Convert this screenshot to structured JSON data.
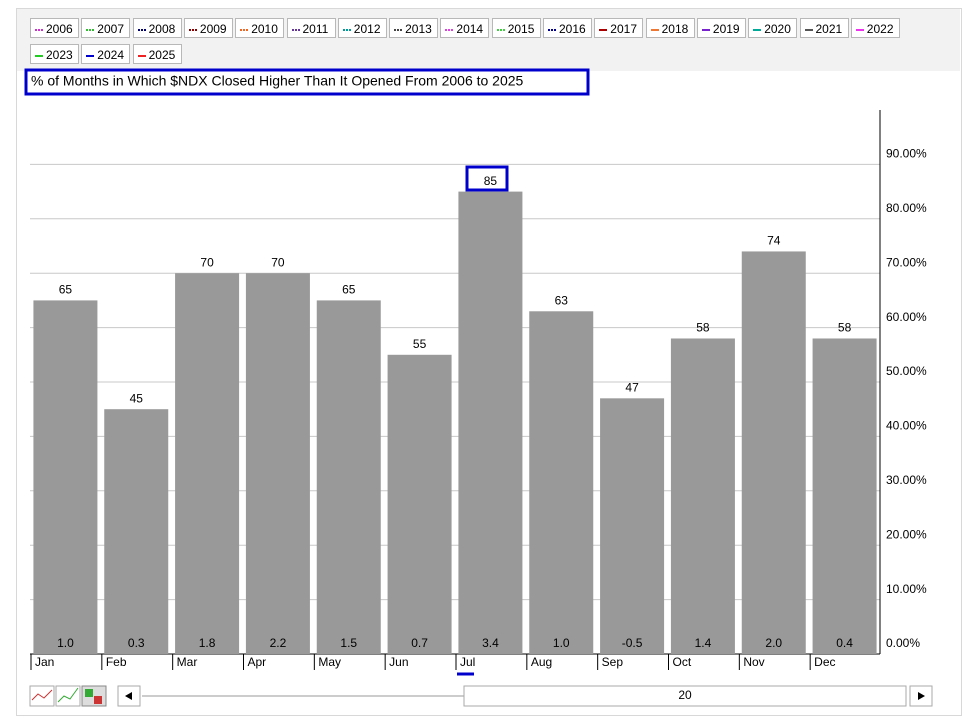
{
  "legend": [
    {
      "label": "2006",
      "color": "#cc33cc",
      "dotted": true
    },
    {
      "label": "2007",
      "color": "#33bb33",
      "dotted": true
    },
    {
      "label": "2008",
      "color": "#000066",
      "dotted": true
    },
    {
      "label": "2009",
      "color": "#880000",
      "dotted": true
    },
    {
      "label": "2010",
      "color": "#ee6622",
      "dotted": true
    },
    {
      "label": "2011",
      "color": "#663399",
      "dotted": true
    },
    {
      "label": "2012",
      "color": "#009999",
      "dotted": true
    },
    {
      "label": "2013",
      "color": "#444444",
      "dotted": true
    },
    {
      "label": "2014",
      "color": "#dd44dd",
      "dotted": true
    },
    {
      "label": "2015",
      "color": "#44cc44",
      "dotted": true
    },
    {
      "label": "2016",
      "color": "#000088",
      "dotted": true
    },
    {
      "label": "2017",
      "color": "#aa0000",
      "dotted": false
    },
    {
      "label": "2018",
      "color": "#ee7733",
      "dotted": false
    },
    {
      "label": "2019",
      "color": "#7722cc",
      "dotted": false
    },
    {
      "label": "2020",
      "color": "#00aa99",
      "dotted": false
    },
    {
      "label": "2021",
      "color": "#555555",
      "dotted": false
    },
    {
      "label": "2022",
      "color": "#ee33ee",
      "dotted": false
    },
    {
      "label": "2023",
      "color": "#22cc22",
      "dotted": false
    },
    {
      "label": "2024",
      "color": "#0000cc",
      "dotted": false
    },
    {
      "label": "2025",
      "color": "#ee2222",
      "dotted": false
    }
  ],
  "chart_data": {
    "type": "bar",
    "title": "% of Months in Which $NDX Closed Higher Than It Opened From 2006 to 2025",
    "categories": [
      "Jan",
      "Feb",
      "Mar",
      "Apr",
      "May",
      "Jun",
      "Jul",
      "Aug",
      "Sep",
      "Oct",
      "Nov",
      "Dec"
    ],
    "values": [
      65,
      45,
      70,
      70,
      65,
      55,
      85,
      63,
      47,
      58,
      74,
      58
    ],
    "bottom_labels": [
      "1.0",
      "0.3",
      "1.8",
      "2.2",
      "1.5",
      "0.7",
      "3.4",
      "1.0",
      "-0.5",
      "1.4",
      "2.0",
      "0.4"
    ],
    "color": "#999999",
    "ylim": [
      0,
      100
    ],
    "yticks": [
      {
        "value": 0,
        "label": "0.00%"
      },
      {
        "value": 10,
        "label": "10.00%"
      },
      {
        "value": 20,
        "label": "20.00%"
      },
      {
        "value": 30,
        "label": "30.00%"
      },
      {
        "value": 40,
        "label": "40.00%"
      },
      {
        "value": 50,
        "label": "50.00%"
      },
      {
        "value": 60,
        "label": "60.00%"
      },
      {
        "value": 70,
        "label": "70.00%"
      },
      {
        "value": 80,
        "label": "80.00%"
      },
      {
        "value": 90,
        "label": "90.00%"
      }
    ],
    "grid": true
  },
  "controls": {
    "scroll_label": "20"
  }
}
